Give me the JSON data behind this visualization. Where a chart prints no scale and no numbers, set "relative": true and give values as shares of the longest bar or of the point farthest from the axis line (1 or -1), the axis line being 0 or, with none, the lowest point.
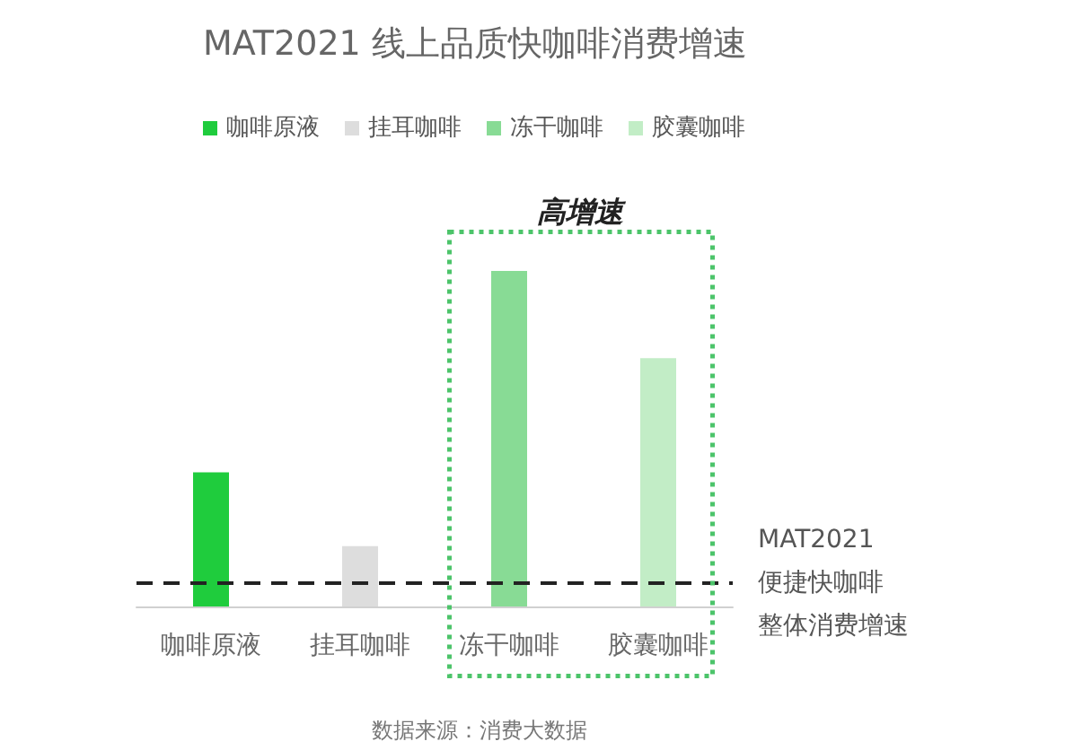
{
  "chart_data": {
    "type": "bar",
    "title": "MAT2021 线上品质快咖啡消费增速",
    "categories": [
      "咖啡原液",
      "挂耳咖啡",
      "冻干咖啡",
      "胶囊咖啡"
    ],
    "series": [
      {
        "name": "咖啡原液",
        "color": "#1fcc3d",
        "values": [
          0.4,
          null,
          null,
          null
        ]
      },
      {
        "name": "挂耳咖啡",
        "color": "#dddddd",
        "values": [
          null,
          0.18,
          null,
          null
        ]
      },
      {
        "name": "冻干咖啡",
        "color": "#88db95",
        "values": [
          null,
          null,
          1,
          null
        ]
      },
      {
        "name": "胶囊咖啡",
        "color": "#c2edc6",
        "values": [
          null,
          null,
          null,
          0.74
        ]
      }
    ],
    "relative": true,
    "legend": "top",
    "ref_lines": [
      {
        "axis": "y",
        "value": 0.07,
        "label": "MAT2021 便捷快咖啡整体消费增速",
        "color": "#222222",
        "line_style": "dashed"
      }
    ],
    "annotations": [
      "高增速",
      "数据来源：消费大数据"
    ]
  }
}
